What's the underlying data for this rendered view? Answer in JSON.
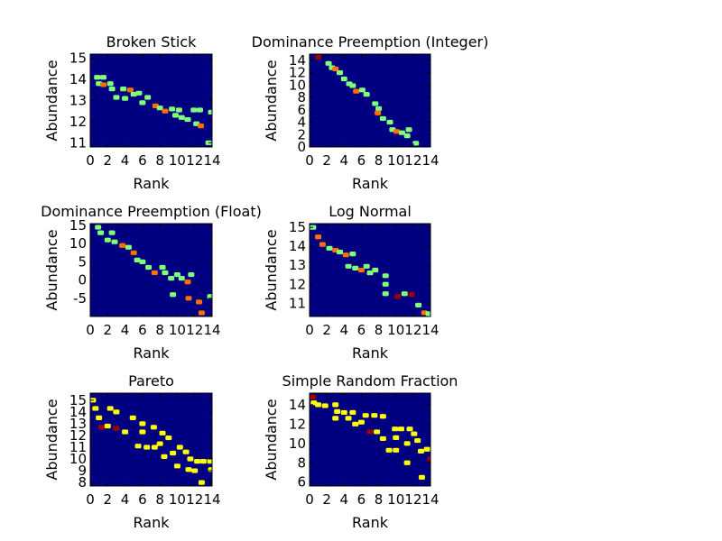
{
  "colors": {
    "background": "#000080",
    "low": "#80ff7a",
    "mid": "#ff7000",
    "high": "#a00000",
    "yellow": "#ffff00",
    "frame": "#000000"
  },
  "chart_data": [
    {
      "type": "heatmap",
      "title": "Broken Stick",
      "xlabel": "Rank",
      "ylabel": "Abundance",
      "xlim": [
        0,
        14
      ],
      "ylim": [
        10.8,
        15.2
      ],
      "xticks": [
        "0",
        "2",
        "4",
        "6",
        "8",
        "10",
        "12",
        "14"
      ],
      "yticks": [
        "11",
        "12",
        "13",
        "14",
        "15"
      ],
      "ytick_values": [
        11,
        12,
        13,
        14,
        15
      ],
      "cells": [
        {
          "x": 0.8,
          "y": 14.1,
          "level": "low"
        },
        {
          "x": 1.5,
          "y": 14.1,
          "level": "low"
        },
        {
          "x": 1.0,
          "y": 13.8,
          "level": "low"
        },
        {
          "x": 1.5,
          "y": 13.75,
          "level": "mid"
        },
        {
          "x": 2.3,
          "y": 13.8,
          "level": "low"
        },
        {
          "x": 2.5,
          "y": 13.55,
          "level": "low"
        },
        {
          "x": 3.8,
          "y": 13.55,
          "level": "low"
        },
        {
          "x": 4.6,
          "y": 13.5,
          "level": "mid"
        },
        {
          "x": 5.0,
          "y": 13.3,
          "level": "low"
        },
        {
          "x": 5.6,
          "y": 13.35,
          "level": "low"
        },
        {
          "x": 3.0,
          "y": 13.15,
          "level": "low"
        },
        {
          "x": 4.0,
          "y": 13.1,
          "level": "low"
        },
        {
          "x": 6.6,
          "y": 13.15,
          "level": "low"
        },
        {
          "x": 6.0,
          "y": 12.9,
          "level": "low"
        },
        {
          "x": 7.5,
          "y": 12.75,
          "level": "mid"
        },
        {
          "x": 8.0,
          "y": 12.65,
          "level": "low"
        },
        {
          "x": 8.6,
          "y": 12.5,
          "level": "mid"
        },
        {
          "x": 9.4,
          "y": 12.6,
          "level": "low"
        },
        {
          "x": 10.2,
          "y": 12.55,
          "level": "low"
        },
        {
          "x": 11.9,
          "y": 12.55,
          "level": "low"
        },
        {
          "x": 12.6,
          "y": 12.55,
          "level": "low"
        },
        {
          "x": 9.8,
          "y": 12.3,
          "level": "low"
        },
        {
          "x": 10.5,
          "y": 12.2,
          "level": "low"
        },
        {
          "x": 11.2,
          "y": 12.1,
          "level": "low"
        },
        {
          "x": 12.2,
          "y": 11.9,
          "level": "low"
        },
        {
          "x": 12.7,
          "y": 11.8,
          "level": "mid"
        },
        {
          "x": 13.9,
          "y": 12.45,
          "level": "low"
        },
        {
          "x": 13.6,
          "y": 11.0,
          "level": "low"
        }
      ]
    },
    {
      "type": "heatmap",
      "title": "Dominance Preemption (Integer)",
      "xlabel": "Rank",
      "ylabel": "Abundance",
      "xlim": [
        0,
        14
      ],
      "ylim": [
        0,
        15
      ],
      "xticks": [
        "0",
        "2",
        "4",
        "6",
        "8",
        "10",
        "12",
        "14"
      ],
      "yticks": [
        "0",
        "2",
        "4",
        "6",
        "8",
        "10",
        "12",
        "14"
      ],
      "ytick_values": [
        0,
        2,
        4,
        6,
        8,
        10,
        12,
        14
      ],
      "cells": [
        {
          "x": 1.0,
          "y": 14.5,
          "level": "high"
        },
        {
          "x": 2.2,
          "y": 13.5,
          "level": "low"
        },
        {
          "x": 2.6,
          "y": 12.8,
          "level": "low"
        },
        {
          "x": 3.0,
          "y": 12.6,
          "level": "mid"
        },
        {
          "x": 3.5,
          "y": 12.0,
          "level": "low"
        },
        {
          "x": 4.0,
          "y": 11.0,
          "level": "low"
        },
        {
          "x": 4.6,
          "y": 10.2,
          "level": "low"
        },
        {
          "x": 5.0,
          "y": 9.9,
          "level": "low"
        },
        {
          "x": 5.4,
          "y": 9.0,
          "level": "mid"
        },
        {
          "x": 6.1,
          "y": 9.2,
          "level": "low"
        },
        {
          "x": 6.6,
          "y": 8.5,
          "level": "low"
        },
        {
          "x": 7.6,
          "y": 7.0,
          "level": "low"
        },
        {
          "x": 8.0,
          "y": 6.2,
          "level": "low"
        },
        {
          "x": 7.9,
          "y": 5.5,
          "level": "mid"
        },
        {
          "x": 8.5,
          "y": 4.6,
          "level": "low"
        },
        {
          "x": 9.3,
          "y": 4.0,
          "level": "low"
        },
        {
          "x": 9.6,
          "y": 2.8,
          "level": "low"
        },
        {
          "x": 10.1,
          "y": 2.5,
          "level": "mid"
        },
        {
          "x": 10.7,
          "y": 2.3,
          "level": "low"
        },
        {
          "x": 11.5,
          "y": 2.8,
          "level": "low"
        },
        {
          "x": 11.3,
          "y": 1.8,
          "level": "low"
        },
        {
          "x": 12.3,
          "y": 0.6,
          "level": "low"
        }
      ]
    },
    {
      "type": "heatmap",
      "title": "Dominance Preemption (Float)",
      "xlabel": "Rank",
      "ylabel": "Abundance",
      "xlim": [
        0,
        14
      ],
      "ylim": [
        -10,
        15.5
      ],
      "xticks": [
        "0",
        "2",
        "4",
        "6",
        "8",
        "10",
        "12",
        "14"
      ],
      "yticks": [
        "15",
        "10",
        "5",
        "0",
        "-5"
      ],
      "ytick_values": [
        15,
        10,
        5,
        0,
        -5
      ],
      "cells": [
        {
          "x": 0.9,
          "y": 14.5,
          "level": "low"
        },
        {
          "x": 1.2,
          "y": 13.0,
          "level": "low"
        },
        {
          "x": 2.5,
          "y": 13.0,
          "level": "low"
        },
        {
          "x": 2.0,
          "y": 11.0,
          "level": "low"
        },
        {
          "x": 2.8,
          "y": 10.5,
          "level": "low"
        },
        {
          "x": 3.7,
          "y": 9.5,
          "level": "mid"
        },
        {
          "x": 4.4,
          "y": 9.0,
          "level": "low"
        },
        {
          "x": 5.0,
          "y": 7.5,
          "level": "mid"
        },
        {
          "x": 5.4,
          "y": 5.5,
          "level": "low"
        },
        {
          "x": 6.0,
          "y": 5.0,
          "level": "low"
        },
        {
          "x": 6.7,
          "y": 3.5,
          "level": "low"
        },
        {
          "x": 7.4,
          "y": 2.0,
          "level": "mid"
        },
        {
          "x": 8.3,
          "y": 3.5,
          "level": "low"
        },
        {
          "x": 8.6,
          "y": 2.0,
          "level": "low"
        },
        {
          "x": 9.3,
          "y": 0.5,
          "level": "low"
        },
        {
          "x": 10.0,
          "y": 1.5,
          "level": "low"
        },
        {
          "x": 10.5,
          "y": 0.5,
          "level": "low"
        },
        {
          "x": 11.2,
          "y": -0.5,
          "level": "mid"
        },
        {
          "x": 11.6,
          "y": 1.5,
          "level": "low"
        },
        {
          "x": 9.5,
          "y": -4.0,
          "level": "low"
        },
        {
          "x": 11.3,
          "y": -5.0,
          "level": "mid"
        },
        {
          "x": 12.5,
          "y": -6.0,
          "level": "mid"
        },
        {
          "x": 12.8,
          "y": -9.0,
          "level": "mid"
        },
        {
          "x": 13.8,
          "y": -4.5,
          "level": "low"
        }
      ]
    },
    {
      "type": "heatmap",
      "title": "Log Normal",
      "xlabel": "Rank",
      "ylabel": "Abundance",
      "xlim": [
        0,
        14
      ],
      "ylim": [
        10.3,
        15.2
      ],
      "xticks": [
        "0",
        "2",
        "4",
        "6",
        "8",
        "10",
        "12",
        "14"
      ],
      "yticks": [
        "11",
        "12",
        "13",
        "14",
        "15"
      ],
      "ytick_values": [
        11,
        12,
        13,
        14,
        15
      ],
      "cells": [
        {
          "x": 0.4,
          "y": 15.0,
          "level": "low"
        },
        {
          "x": 1.0,
          "y": 14.5,
          "level": "mid"
        },
        {
          "x": 1.5,
          "y": 14.1,
          "level": "mid"
        },
        {
          "x": 2.3,
          "y": 13.9,
          "level": "low"
        },
        {
          "x": 3.0,
          "y": 13.8,
          "level": "mid"
        },
        {
          "x": 3.5,
          "y": 13.7,
          "level": "low"
        },
        {
          "x": 4.2,
          "y": 13.55,
          "level": "mid"
        },
        {
          "x": 5.0,
          "y": 13.6,
          "level": "low"
        },
        {
          "x": 4.5,
          "y": 12.95,
          "level": "low"
        },
        {
          "x": 5.3,
          "y": 12.85,
          "level": "low"
        },
        {
          "x": 6.0,
          "y": 12.75,
          "level": "mid"
        },
        {
          "x": 6.6,
          "y": 12.95,
          "level": "low"
        },
        {
          "x": 7.0,
          "y": 12.6,
          "level": "low"
        },
        {
          "x": 7.6,
          "y": 12.75,
          "level": "low"
        },
        {
          "x": 8.8,
          "y": 12.45,
          "level": "low"
        },
        {
          "x": 8.8,
          "y": 12.0,
          "level": "low"
        },
        {
          "x": 8.8,
          "y": 11.5,
          "level": "low"
        },
        {
          "x": 10.2,
          "y": 11.35,
          "level": "high"
        },
        {
          "x": 11.0,
          "y": 11.5,
          "level": "low"
        },
        {
          "x": 11.8,
          "y": 11.45,
          "level": "high"
        },
        {
          "x": 12.6,
          "y": 10.9,
          "level": "low"
        },
        {
          "x": 13.3,
          "y": 10.5,
          "level": "mid"
        },
        {
          "x": 13.8,
          "y": 10.45,
          "level": "low"
        }
      ]
    },
    {
      "type": "heatmap",
      "title": "Pareto",
      "xlabel": "Rank",
      "ylabel": "Abundance",
      "xlim": [
        0,
        14
      ],
      "ylim": [
        7.7,
        15.6
      ],
      "xticks": [
        "0",
        "2",
        "4",
        "6",
        "8",
        "10",
        "12",
        "14"
      ],
      "yticks": [
        "8",
        "9",
        "10",
        "11",
        "12",
        "13",
        "14",
        "15"
      ],
      "ytick_values": [
        8,
        9,
        10,
        11,
        12,
        13,
        14,
        15
      ],
      "cells": [
        {
          "x": 0.3,
          "y": 15.0,
          "level": "yellow"
        },
        {
          "x": 0.6,
          "y": 14.3,
          "level": "yellow"
        },
        {
          "x": 1.0,
          "y": 13.5,
          "level": "yellow"
        },
        {
          "x": 1.3,
          "y": 12.7,
          "level": "high"
        },
        {
          "x": 2.3,
          "y": 14.3,
          "level": "yellow"
        },
        {
          "x": 2.0,
          "y": 12.8,
          "level": "yellow"
        },
        {
          "x": 3.0,
          "y": 14.0,
          "level": "yellow"
        },
        {
          "x": 3.0,
          "y": 12.6,
          "level": "high"
        },
        {
          "x": 4.0,
          "y": 12.3,
          "level": "yellow"
        },
        {
          "x": 4.9,
          "y": 13.5,
          "level": "yellow"
        },
        {
          "x": 6.0,
          "y": 13.0,
          "level": "yellow"
        },
        {
          "x": 6.0,
          "y": 12.3,
          "level": "yellow"
        },
        {
          "x": 5.5,
          "y": 11.1,
          "level": "yellow"
        },
        {
          "x": 6.5,
          "y": 11.0,
          "level": "yellow"
        },
        {
          "x": 7.3,
          "y": 12.7,
          "level": "yellow"
        },
        {
          "x": 7.4,
          "y": 11.0,
          "level": "yellow"
        },
        {
          "x": 8.0,
          "y": 11.3,
          "level": "yellow"
        },
        {
          "x": 8.3,
          "y": 12.2,
          "level": "yellow"
        },
        {
          "x": 9.0,
          "y": 11.8,
          "level": "yellow"
        },
        {
          "x": 8.5,
          "y": 10.2,
          "level": "yellow"
        },
        {
          "x": 9.5,
          "y": 10.5,
          "level": "yellow"
        },
        {
          "x": 10.3,
          "y": 11.0,
          "level": "yellow"
        },
        {
          "x": 11.0,
          "y": 10.6,
          "level": "yellow"
        },
        {
          "x": 11.5,
          "y": 10.0,
          "level": "yellow"
        },
        {
          "x": 12.3,
          "y": 9.8,
          "level": "yellow"
        },
        {
          "x": 10.0,
          "y": 9.4,
          "level": "yellow"
        },
        {
          "x": 11.3,
          "y": 9.1,
          "level": "yellow"
        },
        {
          "x": 12.0,
          "y": 9.0,
          "level": "yellow"
        },
        {
          "x": 13.0,
          "y": 9.8,
          "level": "yellow"
        },
        {
          "x": 13.8,
          "y": 9.8,
          "level": "yellow"
        },
        {
          "x": 12.8,
          "y": 8.0,
          "level": "yellow"
        },
        {
          "x": 13.9,
          "y": 9.1,
          "level": "yellow"
        }
      ]
    },
    {
      "type": "heatmap",
      "title": "Simple Random Fraction",
      "xlabel": "Rank",
      "ylabel": "Abundance",
      "xlim": [
        0,
        14
      ],
      "ylim": [
        5.6,
        15.2
      ],
      "xticks": [
        "0",
        "2",
        "4",
        "6",
        "8",
        "10",
        "12",
        "14"
      ],
      "yticks": [
        "6",
        "8",
        "10",
        "12",
        "14"
      ],
      "ytick_values": [
        6,
        8,
        10,
        12,
        14
      ],
      "cells": [
        {
          "x": 0.4,
          "y": 14.8,
          "level": "high"
        },
        {
          "x": 0.5,
          "y": 14.2,
          "level": "yellow"
        },
        {
          "x": 1.0,
          "y": 14.0,
          "level": "yellow"
        },
        {
          "x": 1.8,
          "y": 13.9,
          "level": "yellow"
        },
        {
          "x": 3.0,
          "y": 14.0,
          "level": "yellow"
        },
        {
          "x": 3.2,
          "y": 13.3,
          "level": "yellow"
        },
        {
          "x": 4.0,
          "y": 13.2,
          "level": "yellow"
        },
        {
          "x": 3.0,
          "y": 12.6,
          "level": "yellow"
        },
        {
          "x": 4.5,
          "y": 12.6,
          "level": "yellow"
        },
        {
          "x": 5.0,
          "y": 13.2,
          "level": "yellow"
        },
        {
          "x": 5.3,
          "y": 12.0,
          "level": "yellow"
        },
        {
          "x": 6.0,
          "y": 12.2,
          "level": "yellow"
        },
        {
          "x": 6.5,
          "y": 12.9,
          "level": "yellow"
        },
        {
          "x": 7.5,
          "y": 12.9,
          "level": "yellow"
        },
        {
          "x": 7.0,
          "y": 11.2,
          "level": "high"
        },
        {
          "x": 7.8,
          "y": 11.2,
          "level": "yellow"
        },
        {
          "x": 8.5,
          "y": 12.8,
          "level": "yellow"
        },
        {
          "x": 8.5,
          "y": 10.5,
          "level": "yellow"
        },
        {
          "x": 9.2,
          "y": 9.3,
          "level": "yellow"
        },
        {
          "x": 10.0,
          "y": 9.3,
          "level": "yellow"
        },
        {
          "x": 9.9,
          "y": 11.5,
          "level": "yellow"
        },
        {
          "x": 10.6,
          "y": 11.5,
          "level": "yellow"
        },
        {
          "x": 10.0,
          "y": 10.6,
          "level": "yellow"
        },
        {
          "x": 11.6,
          "y": 11.5,
          "level": "yellow"
        },
        {
          "x": 11.3,
          "y": 10.0,
          "level": "yellow"
        },
        {
          "x": 12.1,
          "y": 11.0,
          "level": "yellow"
        },
        {
          "x": 12.5,
          "y": 10.3,
          "level": "yellow"
        },
        {
          "x": 12.9,
          "y": 9.2,
          "level": "yellow"
        },
        {
          "x": 11.3,
          "y": 8.0,
          "level": "yellow"
        },
        {
          "x": 13.0,
          "y": 6.5,
          "level": "yellow"
        },
        {
          "x": 13.6,
          "y": 9.4,
          "level": "yellow"
        },
        {
          "x": 14.0,
          "y": 8.4,
          "level": "high"
        }
      ]
    }
  ]
}
